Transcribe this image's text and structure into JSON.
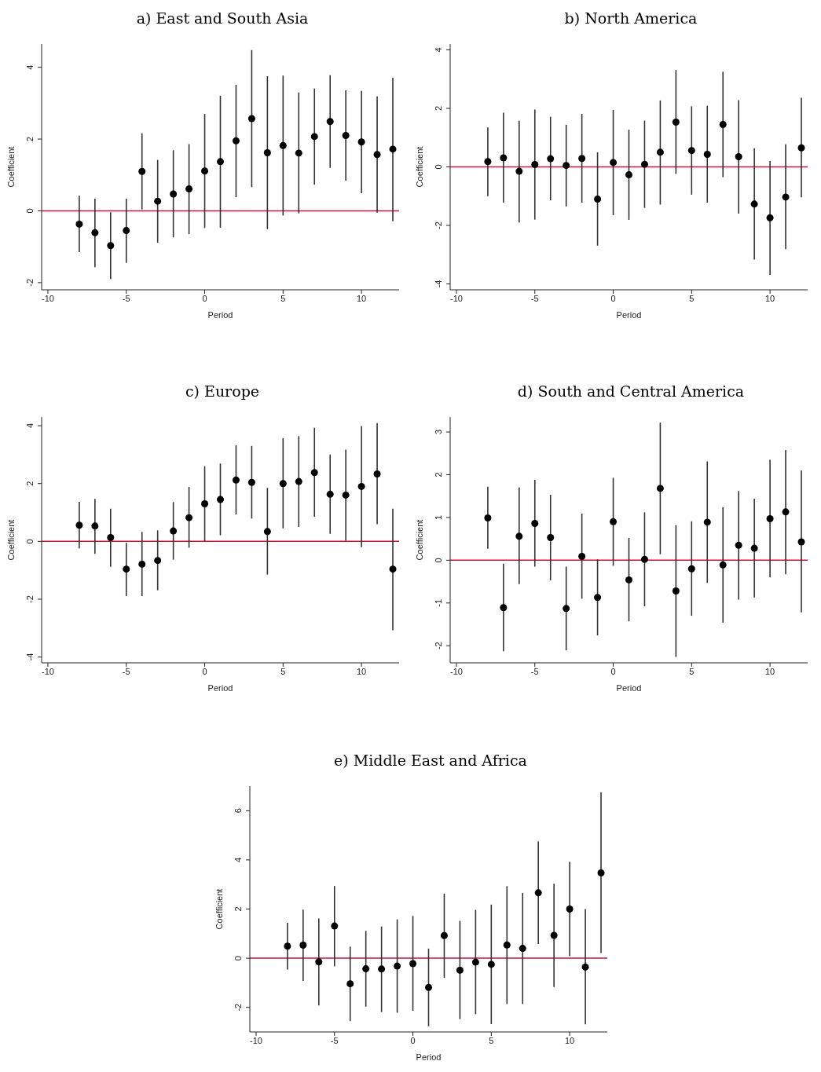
{
  "chart_data": [
    {
      "type": "scatter",
      "title": "a) East and South Asia",
      "xlabel": "Period",
      "ylabel": "Coefficient",
      "marker": "circle",
      "color": "#000000",
      "x": [
        -8,
        -7,
        -6,
        -5,
        -4,
        -3,
        -2,
        -1,
        0,
        1,
        2,
        3,
        4,
        5,
        6,
        7,
        8,
        9,
        10,
        11,
        12
      ],
      "values": [
        -0.37,
        -0.61,
        -0.97,
        -0.55,
        1.1,
        0.27,
        0.47,
        0.61,
        1.11,
        1.37,
        1.95,
        2.57,
        1.62,
        1.82,
        1.61,
        2.07,
        2.49,
        2.1,
        1.92,
        1.57,
        1.72
      ],
      "errors": [
        [
          -1.15,
          0.42
        ],
        [
          -1.57,
          0.34
        ],
        [
          -1.9,
          -0.04
        ],
        [
          -1.45,
          0.34
        ],
        [
          0.04,
          2.16
        ],
        [
          -0.89,
          1.42
        ],
        [
          -0.74,
          1.69
        ],
        [
          -0.65,
          1.86
        ],
        [
          -0.48,
          2.7
        ],
        [
          -0.47,
          3.21
        ],
        [
          0.38,
          3.51
        ],
        [
          0.66,
          4.48
        ],
        [
          -0.51,
          3.75
        ],
        [
          -0.13,
          3.77
        ],
        [
          -0.07,
          3.3
        ],
        [
          0.73,
          3.41
        ],
        [
          1.2,
          3.78
        ],
        [
          0.84,
          3.36
        ],
        [
          0.49,
          3.34
        ],
        [
          -0.05,
          3.19
        ],
        [
          -0.29,
          3.71
        ]
      ],
      "xlim": [
        -10.4,
        12.4
      ],
      "xticks": [
        -10,
        -5,
        0,
        5,
        10
      ],
      "ylim": [
        -2.2,
        4.65
      ],
      "yticks": [
        -2,
        0,
        2,
        4
      ],
      "ref_lines": [
        {
          "axis": "y",
          "value": 0,
          "color": "#c8143c"
        }
      ]
    },
    {
      "type": "scatter",
      "title": "b) North America",
      "xlabel": "Period",
      "ylabel": "Coefficient",
      "marker": "circle",
      "color": "#000000",
      "x": [
        -8,
        -7,
        -6,
        -5,
        -4,
        -3,
        -2,
        -1,
        0,
        1,
        2,
        3,
        4,
        5,
        6,
        7,
        8,
        9,
        10,
        11,
        12
      ],
      "values": [
        0.18,
        0.31,
        -0.15,
        0.08,
        0.28,
        0.05,
        0.29,
        -1.1,
        0.15,
        -0.27,
        0.09,
        0.5,
        1.53,
        0.56,
        0.43,
        1.45,
        0.35,
        -1.27,
        -1.74,
        -1.03,
        0.65
      ],
      "errors": [
        [
          -1,
          1.35
        ],
        [
          -1.22,
          1.85
        ],
        [
          -1.9,
          1.58
        ],
        [
          -1.8,
          1.96
        ],
        [
          -1.14,
          1.71
        ],
        [
          -1.35,
          1.44
        ],
        [
          -1.22,
          1.81
        ],
        [
          -2.69,
          0.5
        ],
        [
          -1.65,
          1.95
        ],
        [
          -1.81,
          1.27
        ],
        [
          -1.4,
          1.58
        ],
        [
          -1.29,
          2.27
        ],
        [
          -0.24,
          3.31
        ],
        [
          -0.95,
          2.07
        ],
        [
          -1.22,
          2.09
        ],
        [
          -0.35,
          3.25
        ],
        [
          -1.6,
          2.28
        ],
        [
          -3.17,
          0.64
        ],
        [
          -3.69,
          0.2
        ],
        [
          -2.81,
          0.77
        ],
        [
          -1.04,
          2.36
        ]
      ],
      "xlim": [
        -10.4,
        12.4
      ],
      "xticks": [
        -10,
        -5,
        0,
        5,
        10
      ],
      "ylim": [
        -4.2,
        4.2
      ],
      "yticks": [
        -4,
        -2,
        0,
        2,
        4
      ],
      "ref_lines": [
        {
          "axis": "y",
          "value": 0,
          "color": "#c8143c"
        }
      ]
    },
    {
      "type": "scatter",
      "title": "c) Europe",
      "xlabel": "Period",
      "ylabel": "Coefficient",
      "marker": "circle",
      "color": "#000000",
      "x": [
        -8,
        -7,
        -6,
        -5,
        -4,
        -3,
        -2,
        -1,
        0,
        1,
        2,
        3,
        4,
        5,
        6,
        7,
        8,
        9,
        10,
        11,
        12
      ],
      "values": [
        0.56,
        0.53,
        0.13,
        -0.96,
        -0.79,
        -0.66,
        0.36,
        0.82,
        1.3,
        1.45,
        2.12,
        2.04,
        0.34,
        2.0,
        2.07,
        2.38,
        1.63,
        1.6,
        1.9,
        2.33,
        -0.96
      ],
      "errors": [
        [
          -0.24,
          1.37
        ],
        [
          -0.43,
          1.47
        ],
        [
          -0.88,
          1.13
        ],
        [
          -1.89,
          -0.05
        ],
        [
          -1.89,
          0.33
        ],
        [
          -1.69,
          0.38
        ],
        [
          -0.63,
          1.36
        ],
        [
          -0.22,
          1.88
        ],
        [
          0,
          2.6
        ],
        [
          0.21,
          2.69
        ],
        [
          0.93,
          3.32
        ],
        [
          0.79,
          3.3
        ],
        [
          -1.15,
          1.85
        ],
        [
          0.45,
          3.57
        ],
        [
          0.5,
          3.64
        ],
        [
          0.85,
          3.93
        ],
        [
          0.26,
          3.0
        ],
        [
          0.02,
          3.17
        ],
        [
          -0.2,
          3.99
        ],
        [
          0.59,
          4.09
        ],
        [
          -3.07,
          1.13
        ]
      ],
      "xlim": [
        -10.4,
        12.4
      ],
      "xticks": [
        -10,
        -5,
        0,
        5,
        10
      ],
      "ylim": [
        -4.2,
        4.3
      ],
      "yticks": [
        -4,
        -2,
        0,
        2,
        4
      ],
      "ref_lines": [
        {
          "axis": "y",
          "value": 0,
          "color": "#c8143c"
        }
      ]
    },
    {
      "type": "scatter",
      "title": "d) South and Central America",
      "xlabel": "Period",
      "ylabel": "Coefficient",
      "marker": "circle",
      "color": "#000000",
      "x": [
        -8,
        -7,
        -6,
        -5,
        -4,
        -3,
        -2,
        -1,
        0,
        1,
        2,
        3,
        4,
        5,
        6,
        7,
        8,
        9,
        10,
        11,
        12
      ],
      "values": [
        0.99,
        -1.11,
        0.56,
        0.86,
        0.53,
        -1.13,
        0.09,
        -0.87,
        0.9,
        -0.46,
        0.02,
        1.68,
        -0.72,
        -0.2,
        0.89,
        -0.11,
        0.35,
        0.28,
        0.97,
        1.13,
        0.43
      ],
      "errors": [
        [
          0.27,
          1.72
        ],
        [
          -2.13,
          -0.08
        ],
        [
          -0.56,
          1.7
        ],
        [
          -0.15,
          1.88
        ],
        [
          -0.47,
          1.53
        ],
        [
          -2.11,
          -0.15
        ],
        [
          -0.9,
          1.09
        ],
        [
          -1.76,
          0.02
        ],
        [
          -0.13,
          1.93
        ],
        [
          -1.43,
          0.52
        ],
        [
          -1.08,
          1.12
        ],
        [
          0.14,
          3.22
        ],
        [
          -2.26,
          0.82
        ],
        [
          -1.3,
          0.91
        ],
        [
          -0.53,
          2.31
        ],
        [
          -1.46,
          1.24
        ],
        [
          -0.92,
          1.62
        ],
        [
          -0.87,
          1.44
        ],
        [
          -0.4,
          2.35
        ],
        [
          -0.33,
          2.58
        ],
        [
          -1.22,
          2.1
        ]
      ],
      "xlim": [
        -10.4,
        12.4
      ],
      "xticks": [
        -10,
        -5,
        0,
        5,
        10
      ],
      "ylim": [
        -2.4,
        3.35
      ],
      "yticks": [
        -2,
        -1,
        0,
        1,
        2,
        3
      ],
      "ref_lines": [
        {
          "axis": "y",
          "value": 0,
          "color": "#c8143c"
        }
      ]
    },
    {
      "type": "scatter",
      "title": "e) Middle East and Africa",
      "xlabel": "Period",
      "ylabel": "Coefficient",
      "marker": "circle",
      "color": "#000000",
      "x": [
        -8,
        -7,
        -6,
        -5,
        -4,
        -3,
        -2,
        -1,
        0,
        1,
        2,
        3,
        4,
        5,
        6,
        7,
        8,
        9,
        10,
        11,
        12
      ],
      "values": [
        0.49,
        0.53,
        -0.15,
        1.31,
        -1.04,
        -0.43,
        -0.44,
        -0.32,
        -0.22,
        -1.19,
        0.92,
        -0.49,
        -0.16,
        -0.25,
        0.54,
        0.4,
        2.66,
        0.93,
        2.0,
        -0.36,
        3.47
      ],
      "errors": [
        [
          -0.46,
          1.44
        ],
        [
          -0.92,
          1.98
        ],
        [
          -1.92,
          1.62
        ],
        [
          -0.33,
          2.94
        ],
        [
          -2.56,
          0.47
        ],
        [
          -1.97,
          1.11
        ],
        [
          -2.19,
          1.29
        ],
        [
          -2.22,
          1.58
        ],
        [
          -2.14,
          1.72
        ],
        [
          -2.77,
          0.39
        ],
        [
          -0.8,
          2.63
        ],
        [
          -2.48,
          1.52
        ],
        [
          -2.28,
          1.97
        ],
        [
          -2.68,
          2.18
        ],
        [
          -1.86,
          2.93
        ],
        [
          -1.86,
          2.66
        ],
        [
          0.58,
          4.75
        ],
        [
          -1.17,
          3.03
        ],
        [
          0.08,
          3.92
        ],
        [
          -2.69,
          2.0
        ],
        [
          0.21,
          6.75
        ]
      ],
      "xlim": [
        -10.4,
        12.4
      ],
      "xticks": [
        -10,
        -5,
        0,
        5,
        10
      ],
      "ylim": [
        -3.0,
        7.0
      ],
      "yticks": [
        -2,
        0,
        2,
        4,
        6
      ],
      "ref_lines": [
        {
          "axis": "y",
          "value": 0,
          "color": "#c8143c"
        }
      ]
    }
  ]
}
